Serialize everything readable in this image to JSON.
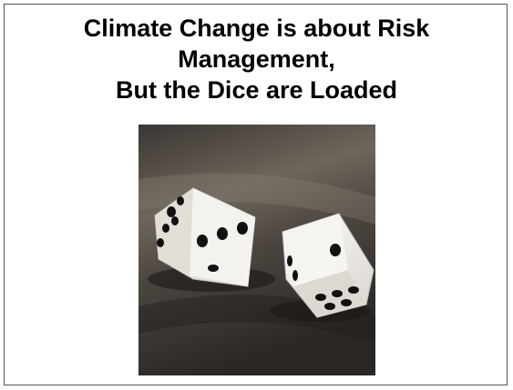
{
  "slide": {
    "title_lines": [
      "Climate Change is about Risk",
      "Management,",
      "But the Dice are Loaded"
    ]
  }
}
